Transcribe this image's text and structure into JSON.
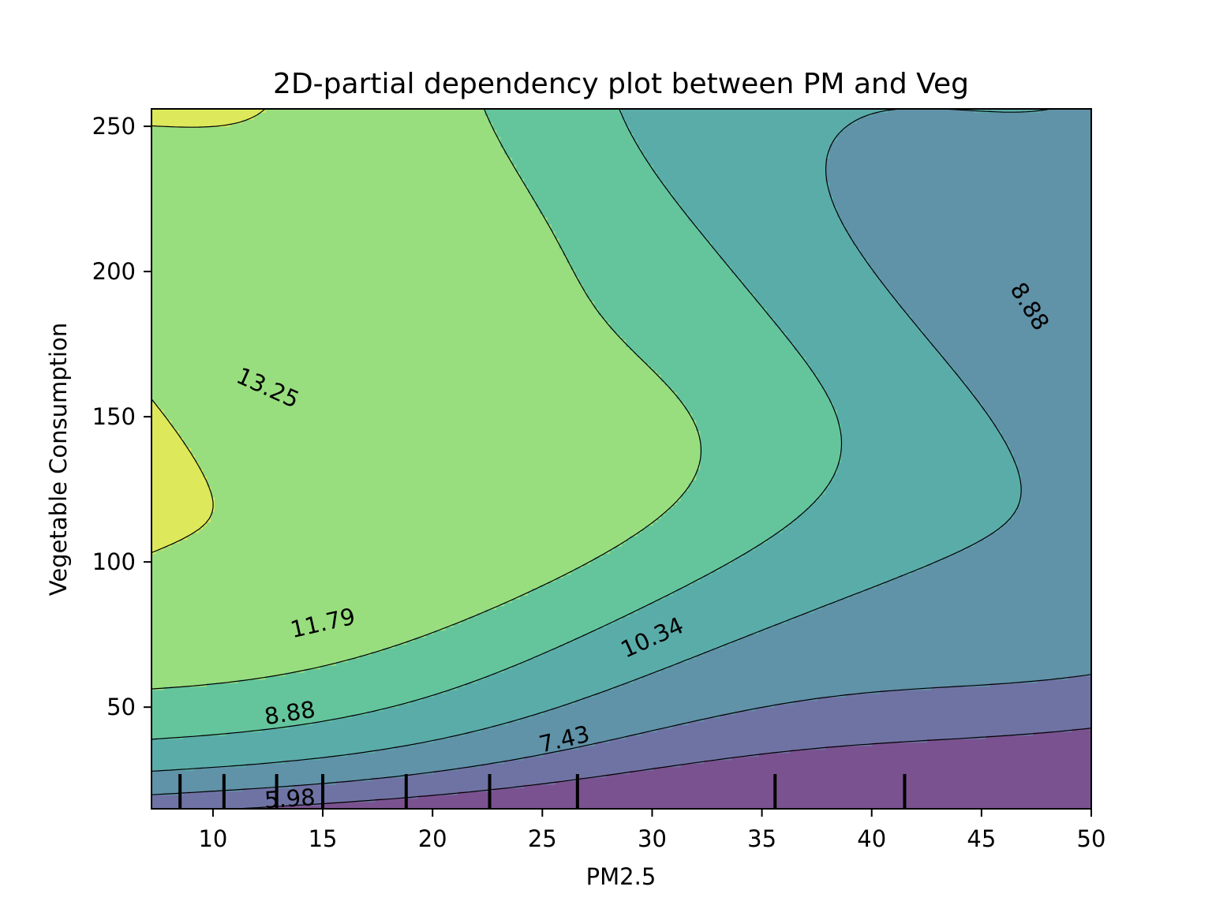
{
  "chart_data": {
    "type": "contour",
    "title": "2D-partial dependency plot between PM and Veg",
    "xlabel": "PM2.5",
    "ylabel": "Vegetable Consumption",
    "xlim": [
      7.2,
      50
    ],
    "ylim": [
      15,
      256
    ],
    "xticks": [
      10,
      15,
      20,
      25,
      30,
      35,
      40,
      45,
      50
    ],
    "yticks": [
      50,
      100,
      150,
      200,
      250
    ],
    "contour_levels": [
      {
        "level": 5.98,
        "label": "5.98"
      },
      {
        "level": 7.43,
        "label": "7.43"
      },
      {
        "level": 8.88,
        "label": "8.88"
      },
      {
        "level": 10.34,
        "label": "10.34"
      },
      {
        "level": 11.79,
        "label": "11.79"
      },
      {
        "level": 13.25,
        "label": "13.25"
      }
    ],
    "band_colors": [
      "#7a528f",
      "#6f73a4",
      "#6092a8",
      "#5aaca9",
      "#64c59c",
      "#98de7e",
      "#dde85a"
    ],
    "contour_labels": [
      {
        "text": "5.98",
        "x": 13.5,
        "y": 18.5
      },
      {
        "text": "7.43",
        "x": 26.0,
        "y": 39
      },
      {
        "text": "8.88",
        "x": 13.5,
        "y": 48
      },
      {
        "text": "10.34",
        "x": 30.0,
        "y": 74
      },
      {
        "text": "11.79",
        "x": 15.0,
        "y": 79
      },
      {
        "text": "13.25",
        "x": 12.5,
        "y": 160
      },
      {
        "text": "8.88",
        "x": 47.2,
        "y": 188
      }
    ],
    "rug_x": [
      8.5,
      10.5,
      12.9,
      15.0,
      18.8,
      22.6,
      26.6,
      35.6,
      41.5
    ]
  }
}
